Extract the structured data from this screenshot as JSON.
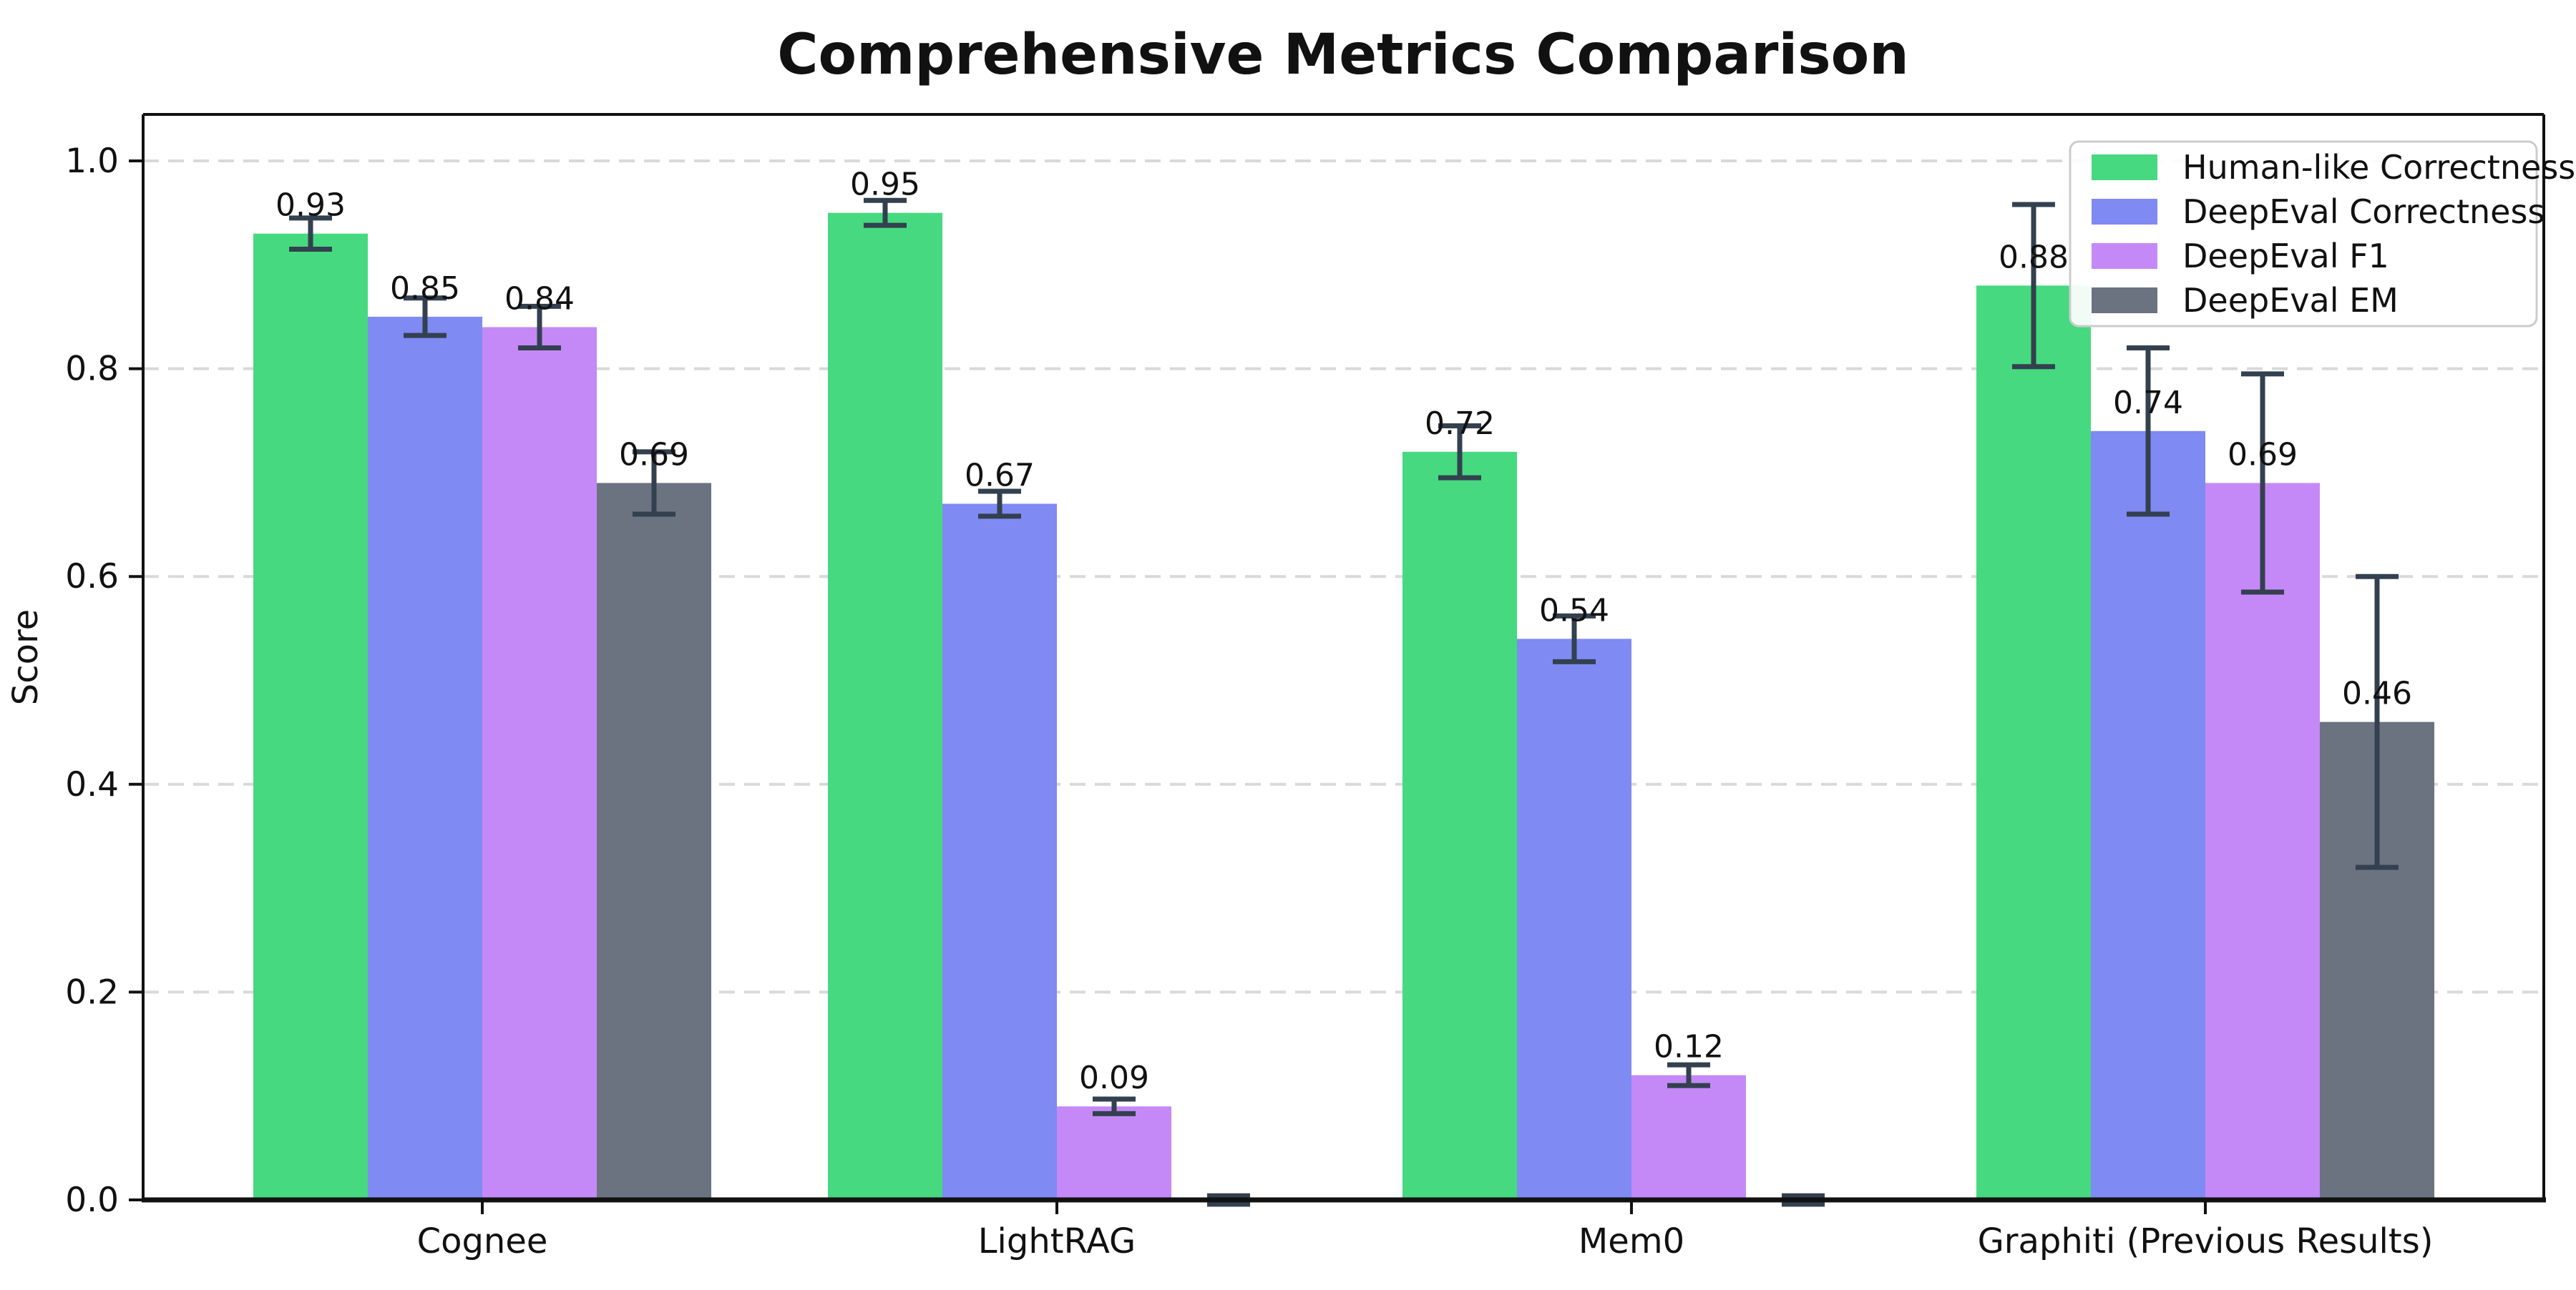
{
  "chart_data": {
    "type": "bar",
    "title": "Comprehensive Metrics Comparison",
    "ylabel": "Score",
    "xlabel": "",
    "categories": [
      "Cognee",
      "LightRAG",
      "Mem0",
      "Graphiti (Previous Results)"
    ],
    "series": [
      {
        "name": "Human-like Correctness",
        "color": "#46d97f",
        "values": [
          0.93,
          0.95,
          0.72,
          0.88
        ],
        "errors": [
          0.015,
          0.012,
          0.025,
          0.078
        ],
        "labels": [
          "0.93",
          "0.95",
          "0.72",
          "0.88"
        ]
      },
      {
        "name": "DeepEval Correctness",
        "color": "#7f8af2",
        "values": [
          0.85,
          0.67,
          0.54,
          0.74
        ],
        "errors": [
          0.018,
          0.012,
          0.022,
          0.08
        ],
        "labels": [
          "0.85",
          "0.67",
          "0.54",
          "0.74"
        ]
      },
      {
        "name": "DeepEval F1",
        "color": "#c489f6",
        "values": [
          0.84,
          0.09,
          0.12,
          0.69
        ],
        "errors": [
          0.02,
          0.007,
          0.01,
          0.105
        ],
        "labels": [
          "0.84",
          "0.09",
          "0.12",
          "0.69"
        ]
      },
      {
        "name": "DeepEval EM",
        "color": "#6b7280",
        "values": [
          0.69,
          0.0,
          0.0,
          0.46
        ],
        "errors": [
          0.03,
          0.004,
          0.004,
          0.14
        ],
        "labels": [
          "0.69",
          null,
          null,
          "0.46"
        ]
      }
    ],
    "yticks": [
      "0.0",
      "0.2",
      "0.4",
      "0.6",
      "0.8",
      "1.0"
    ],
    "ytick_values": [
      0.0,
      0.2,
      0.4,
      0.6,
      0.8,
      1.0
    ],
    "ylim": [
      0,
      1.045
    ],
    "grid": "horizontal-dashed",
    "legend_position": "upper right",
    "colors": {
      "error_bar": "#33404f",
      "gridline": "#d9d9d9",
      "spine": "#111111",
      "legend_border": "#cccccc",
      "background": "#ffffff",
      "text": "#111111"
    }
  }
}
